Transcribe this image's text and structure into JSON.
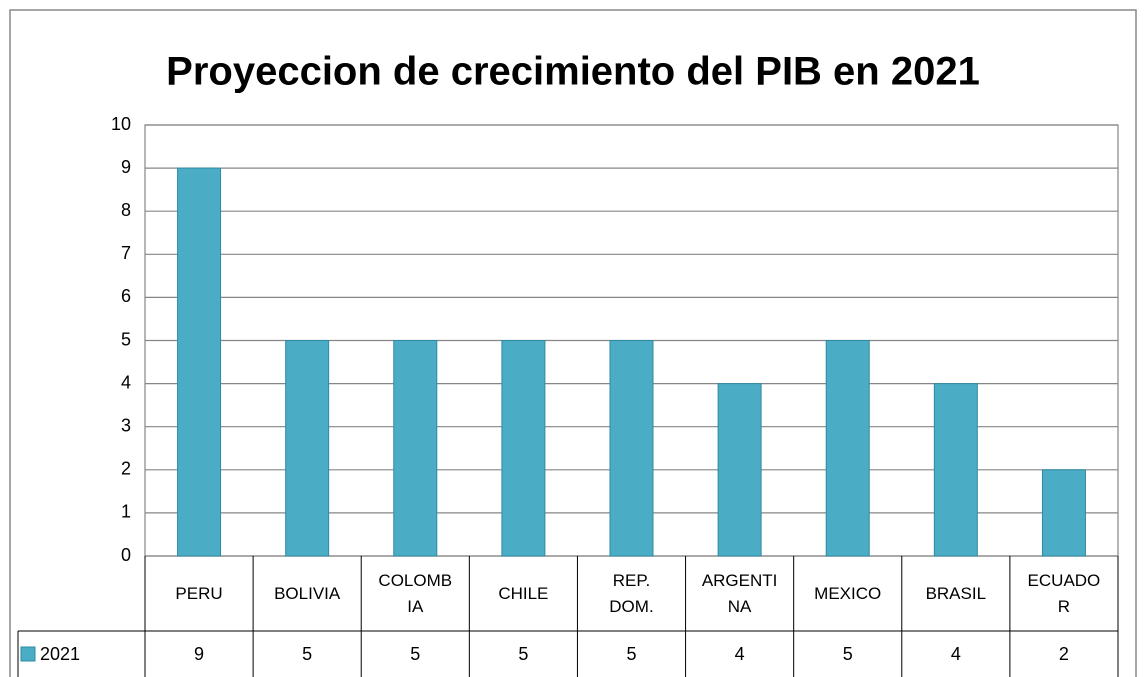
{
  "chart_data": {
    "type": "bar",
    "title": "Proyeccion de crecimiento del PIB en 2021",
    "categories": [
      "PERU",
      "BOLIVIA",
      "COLOMBIA",
      "CHILE",
      "REP. DOM.",
      "ARGENTINA",
      "MEXICO",
      "BRASIL",
      "ECUADOR"
    ],
    "series": [
      {
        "name": "2021",
        "color": "#4bacc6",
        "values": [
          9,
          5,
          5,
          5,
          5,
          4,
          5,
          4,
          2
        ]
      }
    ],
    "ylim": [
      0,
      10
    ],
    "yticks": [
      0,
      1,
      2,
      3,
      4,
      5,
      6,
      7,
      8,
      9,
      10
    ],
    "grid": true
  }
}
